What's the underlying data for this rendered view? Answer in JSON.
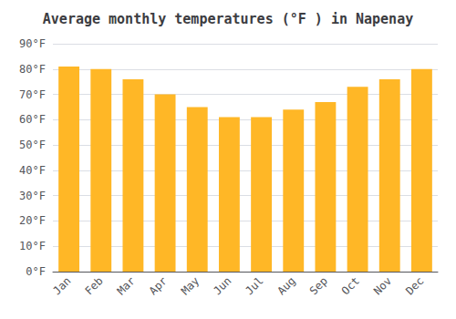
{
  "chart_data": {
    "type": "bar",
    "title": "Average monthly temperatures (°F ) in Napenay",
    "categories": [
      "Jan",
      "Feb",
      "Mar",
      "Apr",
      "May",
      "Jun",
      "Jul",
      "Aug",
      "Sep",
      "Oct",
      "Nov",
      "Dec"
    ],
    "values": [
      81,
      80,
      76,
      70,
      65,
      61,
      61,
      64,
      67,
      73,
      76,
      80
    ],
    "color": "#FFB726",
    "ylim": [
      0,
      90
    ],
    "yticks": [
      {
        "value": 0,
        "label": "0°F"
      },
      {
        "value": 10,
        "label": "10°F"
      },
      {
        "value": 20,
        "label": "20°F"
      },
      {
        "value": 30,
        "label": "30°F"
      },
      {
        "value": 40,
        "label": "40°F"
      },
      {
        "value": 50,
        "label": "50°F"
      },
      {
        "value": 60,
        "label": "60°F"
      },
      {
        "value": 70,
        "label": "70°F"
      },
      {
        "value": 80,
        "label": "80°F"
      },
      {
        "value": 90,
        "label": "90°F"
      }
    ],
    "grid": true
  }
}
